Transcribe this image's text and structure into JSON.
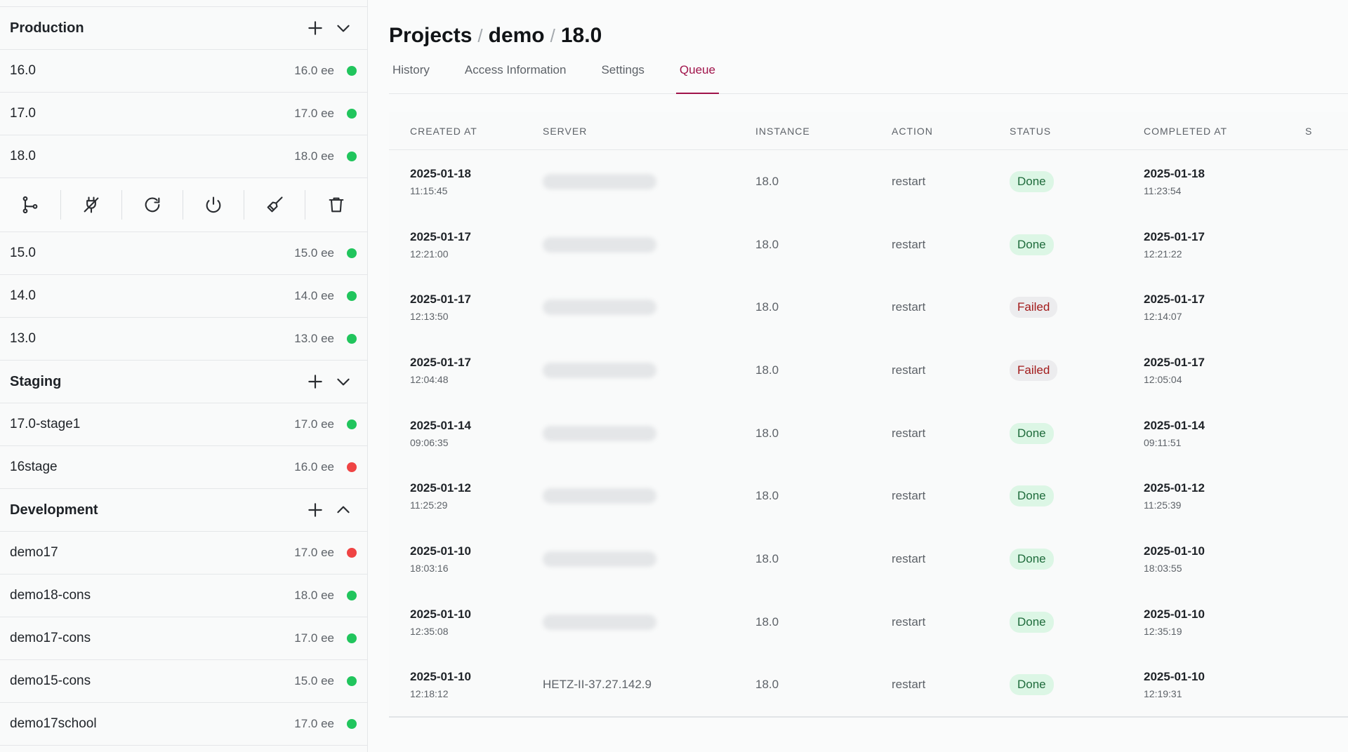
{
  "sidebar": {
    "groups": [
      {
        "title": "Production",
        "expanded": true,
        "items": [
          {
            "name": "16.0",
            "version": "16.0 ee",
            "status": "green"
          },
          {
            "name": "17.0",
            "version": "17.0 ee",
            "status": "green"
          },
          {
            "name": "18.0",
            "version": "18.0 ee",
            "status": "green",
            "selected": true
          },
          {
            "name": "15.0",
            "version": "15.0 ee",
            "status": "green"
          },
          {
            "name": "14.0",
            "version": "14.0 ee",
            "status": "green"
          },
          {
            "name": "13.0",
            "version": "13.0 ee",
            "status": "green"
          }
        ]
      },
      {
        "title": "Staging",
        "expanded": true,
        "items": [
          {
            "name": "17.0-stage1",
            "version": "17.0 ee",
            "status": "green"
          },
          {
            "name": "16stage",
            "version": "16.0 ee",
            "status": "red"
          }
        ]
      },
      {
        "title": "Development",
        "expanded": true,
        "items": [
          {
            "name": "demo17",
            "version": "17.0 ee",
            "status": "red"
          },
          {
            "name": "demo18-cons",
            "version": "18.0 ee",
            "status": "green"
          },
          {
            "name": "demo17-cons",
            "version": "17.0 ee",
            "status": "green"
          },
          {
            "name": "demo15-cons",
            "version": "15.0 ee",
            "status": "green"
          },
          {
            "name": "demo17school",
            "version": "17.0 ee",
            "status": "green"
          }
        ]
      }
    ],
    "actions": [
      "branch-icon",
      "plug-icon",
      "refresh-icon",
      "power-icon",
      "broom-icon",
      "trash-icon"
    ]
  },
  "breadcrumb": {
    "projects": "Projects",
    "sep": "/",
    "project": "demo",
    "version": "18.0"
  },
  "tabs": [
    {
      "label": "History",
      "active": false
    },
    {
      "label": "Access Information",
      "active": false
    },
    {
      "label": "Settings",
      "active": false
    },
    {
      "label": "Queue",
      "active": true
    }
  ],
  "table": {
    "headers": [
      "CREATED AT",
      "SERVER",
      "INSTANCE",
      "ACTION",
      "STATUS",
      "COMPLETED AT",
      "S"
    ],
    "rows": [
      {
        "created_date": "2025-01-18",
        "created_time": "11:15:45",
        "server": "",
        "instance": "18.0",
        "action": "restart",
        "status": "Done",
        "completed_date": "2025-01-18",
        "completed_time": "11:23:54"
      },
      {
        "created_date": "2025-01-17",
        "created_time": "12:21:00",
        "server": "",
        "instance": "18.0",
        "action": "restart",
        "status": "Done",
        "completed_date": "2025-01-17",
        "completed_time": "12:21:22"
      },
      {
        "created_date": "2025-01-17",
        "created_time": "12:13:50",
        "server": "",
        "instance": "18.0",
        "action": "restart",
        "status": "Failed",
        "completed_date": "2025-01-17",
        "completed_time": "12:14:07"
      },
      {
        "created_date": "2025-01-17",
        "created_time": "12:04:48",
        "server": "",
        "instance": "18.0",
        "action": "restart",
        "status": "Failed",
        "completed_date": "2025-01-17",
        "completed_time": "12:05:04"
      },
      {
        "created_date": "2025-01-14",
        "created_time": "09:06:35",
        "server": "",
        "instance": "18.0",
        "action": "restart",
        "status": "Done",
        "completed_date": "2025-01-14",
        "completed_time": "09:11:51"
      },
      {
        "created_date": "2025-01-12",
        "created_time": "11:25:29",
        "server": "",
        "instance": "18.0",
        "action": "restart",
        "status": "Done",
        "completed_date": "2025-01-12",
        "completed_time": "11:25:39"
      },
      {
        "created_date": "2025-01-10",
        "created_time": "18:03:16",
        "server": "",
        "instance": "18.0",
        "action": "restart",
        "status": "Done",
        "completed_date": "2025-01-10",
        "completed_time": "18:03:55"
      },
      {
        "created_date": "2025-01-10",
        "created_time": "12:35:08",
        "server": "",
        "instance": "18.0",
        "action": "restart",
        "status": "Done",
        "completed_date": "2025-01-10",
        "completed_time": "12:35:19"
      },
      {
        "created_date": "2025-01-10",
        "created_time": "12:18:12",
        "server": "HETZ-II-37.27.142.9",
        "instance": "18.0",
        "action": "restart",
        "status": "Done",
        "completed_date": "2025-01-10",
        "completed_time": "12:19:31"
      }
    ]
  },
  "colors": {
    "accent": "#a0134a",
    "ok": "#21c55d",
    "error": "#ef4444"
  }
}
